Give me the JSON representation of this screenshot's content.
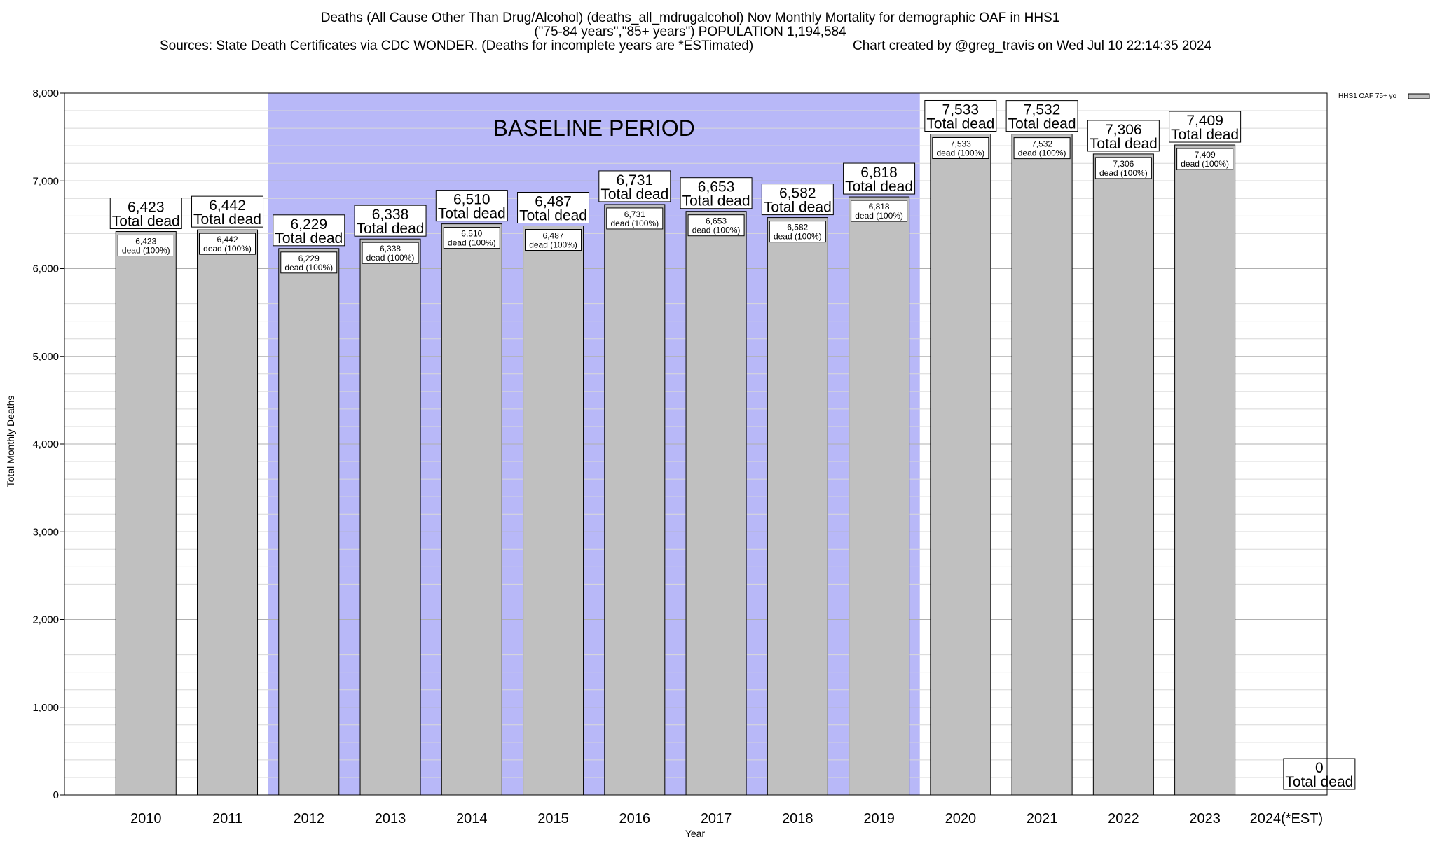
{
  "title": {
    "line1": "Deaths (All Cause Other Than Drug/Alcohol) (deaths_all_mdrugalcohol) Nov Monthly Mortality for demographic OAF in HHS1",
    "line2": "(\"75-84 years\",\"85+ years\") POPULATION 1,194,584",
    "line3_left": "Sources: State Death Certificates via CDC WONDER. (Deaths for incomplete years are *ESTimated)",
    "line3_right": "Chart created by @greg_travis on Wed Jul 10 22:14:35 2024"
  },
  "chart_data": {
    "type": "bar",
    "xlabel": "Year",
    "ylabel": "Total Monthly Deaths",
    "ylim": [
      0,
      8000
    ],
    "yticks": [
      "0",
      "1,000",
      "2,000",
      "3,000",
      "4,000",
      "5,000",
      "6,000",
      "7,000",
      "8,000"
    ],
    "grid": true,
    "categories": [
      "2010",
      "2011",
      "2012",
      "2013",
      "2014",
      "2015",
      "2016",
      "2017",
      "2018",
      "2019",
      "2020",
      "2021",
      "2022",
      "2023",
      "2024(*EST)"
    ],
    "series": [
      {
        "name": "HHS1 OAF 75+ yo",
        "values": [
          6423,
          6442,
          6229,
          6338,
          6510,
          6487,
          6731,
          6653,
          6582,
          6818,
          7533,
          7532,
          7306,
          7409,
          0
        ],
        "color": "#c0c0c0"
      }
    ],
    "total_labels": [
      "6,423",
      "6,442",
      "6,229",
      "6,338",
      "6,510",
      "6,487",
      "6,731",
      "6,653",
      "6,582",
      "6,818",
      "7,533",
      "7,532",
      "7,306",
      "7,409",
      "0"
    ],
    "total_suffix": "Total dead",
    "inner_labels": [
      "6,423",
      "6,442",
      "6,229",
      "6,338",
      "6,510",
      "6,487",
      "6,731",
      "6,653",
      "6,582",
      "6,818",
      "7,533",
      "7,532",
      "7,306",
      "7,409",
      ""
    ],
    "inner_suffix": "dead (100%)",
    "baseline": {
      "label": "BASELINE PERIOD",
      "from": "2012",
      "to": "2019",
      "color": "#b8b8f8"
    },
    "legend": {
      "entry": "HHS1 OAF 75+ yo",
      "position": "top-right"
    }
  }
}
